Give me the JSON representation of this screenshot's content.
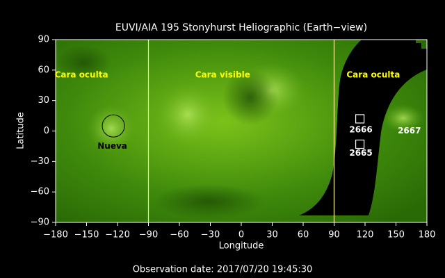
{
  "chart_data": {
    "type": "map",
    "title": "EUVI/AIA 195 Stonyhurst Heliographic (Earth−view)",
    "xlabel": "Longitude",
    "ylabel": "Latitude",
    "caption": "Observation date: 2017/07/20 19:45:30",
    "xlim": [
      -180,
      180
    ],
    "xticks": [
      {
        "value": -180,
        "label": "−180"
      },
      {
        "value": -150,
        "label": "−150"
      },
      {
        "value": -120,
        "label": "−120"
      },
      {
        "value": -90,
        "label": "−90"
      },
      {
        "value": -60,
        "label": "−60"
      },
      {
        "value": -30,
        "label": "−30"
      },
      0,
      30,
      60,
      90,
      120,
      150,
      180
    ],
    "ylim": [
      -90,
      90
    ],
    "yticks": [
      {
        "value": -90,
        "label": "−90"
      },
      {
        "value": -60,
        "label": "−60"
      },
      {
        "value": -30,
        "label": "−30"
      },
      0,
      30,
      60,
      90
    ],
    "vlines": [
      -90,
      90
    ],
    "vline_color": "#ffff99",
    "annotations": [
      {
        "text": "Cara oculta",
        "x": -155,
        "y": 55,
        "color": "#ffff00"
      },
      {
        "text": "Cara visible",
        "x": -18,
        "y": 55,
        "color": "#ffff00"
      },
      {
        "text": "Cara oculta",
        "x": 128,
        "y": 55,
        "color": "#ffff00"
      },
      {
        "text": "Nueva",
        "x": -125,
        "y": -15,
        "color": "#000000"
      },
      {
        "text": "2666",
        "x": 116,
        "y": 1,
        "color": "#ffffff"
      },
      {
        "text": "2665",
        "x": 116,
        "y": -22,
        "color": "#ffffff"
      },
      {
        "text": "2667",
        "x": 163,
        "y": 0,
        "color": "#ffffff"
      }
    ],
    "markers": [
      {
        "shape": "circle",
        "x": -124,
        "y": 5,
        "color": "#000000"
      },
      {
        "shape": "square",
        "x": 115,
        "y": 12,
        "color": "#ffffff"
      },
      {
        "shape": "square",
        "x": 115,
        "y": -13,
        "color": "#ffffff"
      }
    ]
  }
}
